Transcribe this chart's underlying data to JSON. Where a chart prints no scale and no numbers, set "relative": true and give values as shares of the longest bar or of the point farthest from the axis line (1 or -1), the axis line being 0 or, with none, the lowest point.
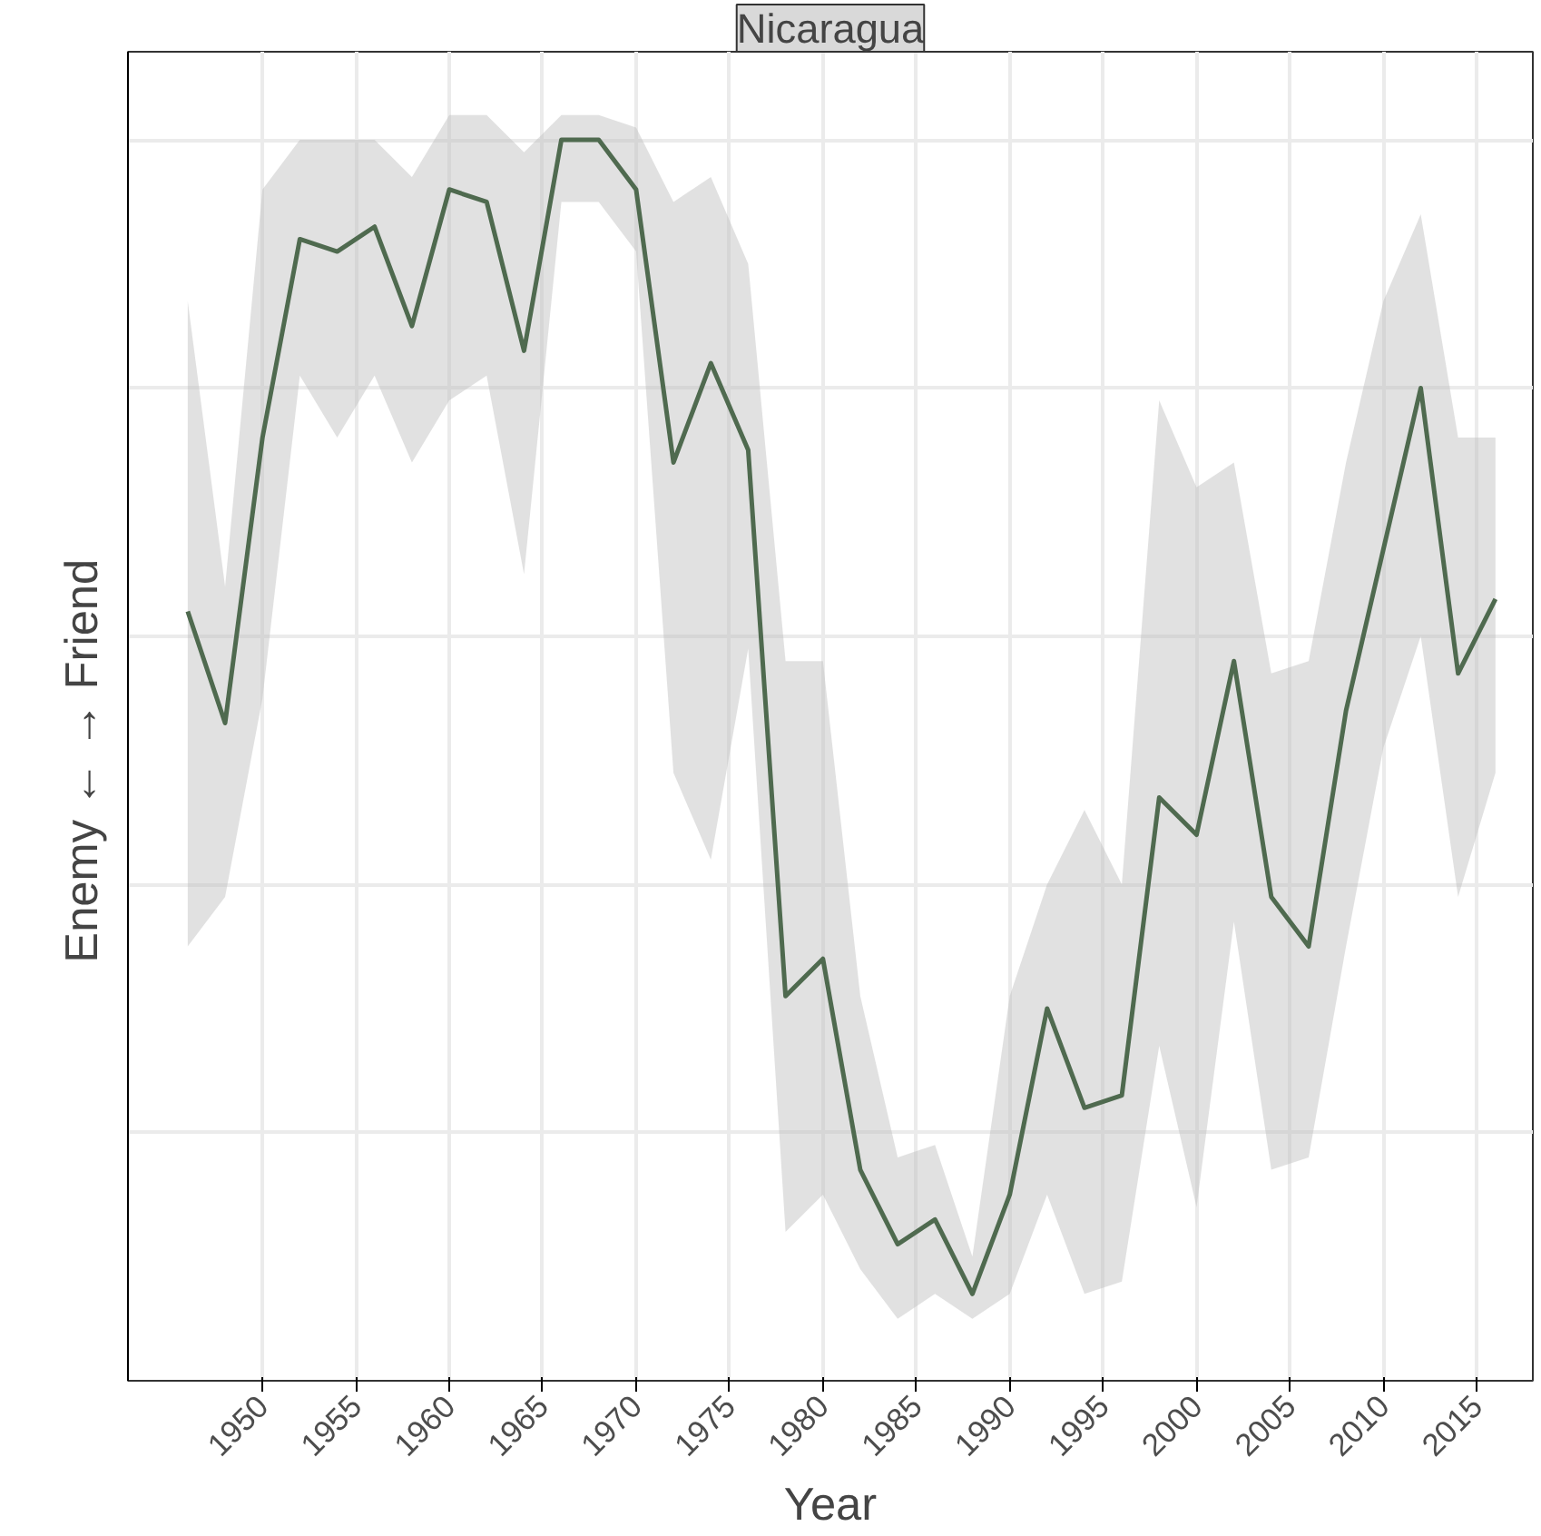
{
  "chart_data": {
    "type": "line",
    "title": "Nicaragua",
    "xlabel": "Year",
    "ylabel": "Enemy  ←      →  Friend",
    "relative": true,
    "x": [
      1946,
      1948,
      1950,
      1952,
      1954,
      1956,
      1958,
      1960,
      1962,
      1964,
      1966,
      1968,
      1970,
      1972,
      1974,
      1976,
      1978,
      1980,
      1982,
      1984,
      1986,
      1988,
      1990,
      1992,
      1994,
      1996,
      1998,
      2000,
      2002,
      2004,
      2006,
      2008,
      2010,
      2012,
      2014,
      2016
    ],
    "xlim": [
      1942.8,
      2018.0
    ],
    "xticks": [
      1950,
      1955,
      1960,
      1965,
      1970,
      1975,
      1980,
      1985,
      1990,
      1995,
      2000,
      2005,
      2010,
      2015
    ],
    "grid": true,
    "series": [
      {
        "color": "#4f6a4f",
        "values": [
          0.62,
          0.53,
          0.76,
          0.92,
          0.91,
          0.93,
          0.85,
          0.96,
          0.95,
          0.83,
          1.0,
          1.0,
          0.96,
          0.74,
          0.82,
          0.75,
          0.31,
          0.34,
          0.17,
          0.11,
          0.13,
          0.07,
          0.15,
          0.3,
          0.22,
          0.23,
          0.47,
          0.44,
          0.58,
          0.39,
          0.35,
          0.54,
          0.67,
          0.8,
          0.57,
          0.63
        ],
        "lower": [
          0.35,
          0.39,
          0.55,
          0.81,
          0.76,
          0.81,
          0.74,
          0.79,
          0.81,
          0.65,
          0.95,
          0.95,
          0.91,
          0.49,
          0.42,
          0.59,
          0.12,
          0.15,
          0.09,
          0.05,
          0.07,
          0.05,
          0.07,
          0.15,
          0.07,
          0.08,
          0.27,
          0.14,
          0.37,
          0.17,
          0.18,
          0.35,
          0.51,
          0.6,
          0.39,
          0.49
        ],
        "upper": [
          0.87,
          0.64,
          0.96,
          1.0,
          1.0,
          1.0,
          0.97,
          1.02,
          1.02,
          0.99,
          1.02,
          1.02,
          1.01,
          0.95,
          0.97,
          0.9,
          0.58,
          0.58,
          0.31,
          0.18,
          0.19,
          0.1,
          0.31,
          0.4,
          0.46,
          0.4,
          0.79,
          0.72,
          0.74,
          0.57,
          0.58,
          0.74,
          0.87,
          0.94,
          0.76,
          0.76
        ]
      }
    ]
  }
}
